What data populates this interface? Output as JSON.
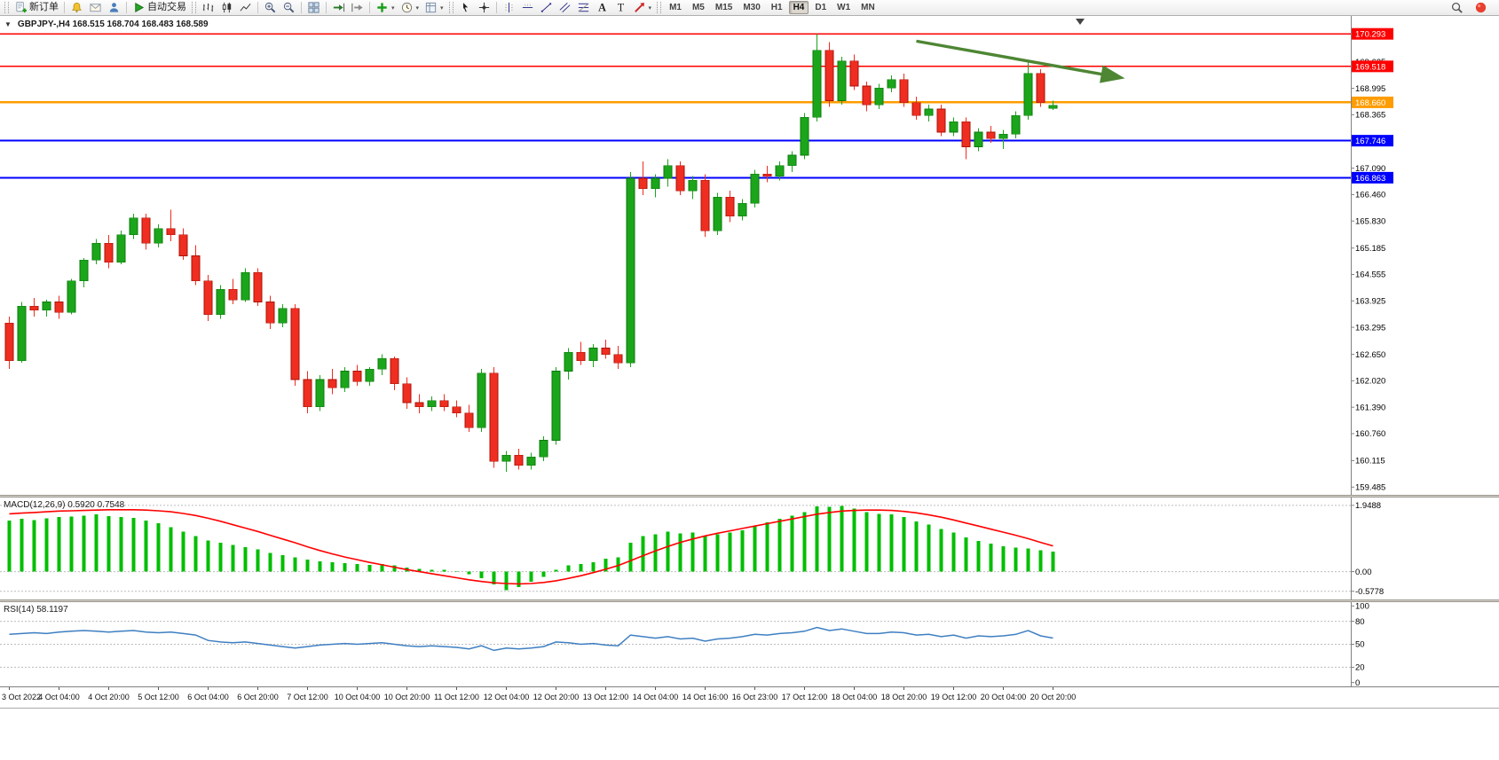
{
  "toolbar": {
    "groups": [
      {
        "grip": true,
        "items": [
          {
            "name": "new-order",
            "icon": "doc-plus",
            "label": "新订单"
          }
        ]
      },
      {
        "items": [
          {
            "name": "alerts",
            "icon": "bell"
          },
          {
            "name": "mailbox",
            "icon": "mail"
          },
          {
            "name": "community",
            "icon": "person"
          }
        ]
      },
      {
        "items": [
          {
            "name": "autotrade",
            "icon": "play",
            "label": "自动交易"
          }
        ]
      },
      {
        "grip": true,
        "items": [
          {
            "name": "chart-bars",
            "icon": "bars"
          },
          {
            "name": "chart-candles",
            "icon": "candles"
          },
          {
            "name": "chart-line",
            "icon": "linechart"
          }
        ]
      },
      {
        "items": [
          {
            "name": "zoom-in",
            "icon": "zoom-in"
          },
          {
            "name": "zoom-out",
            "icon": "zoom-out"
          }
        ]
      },
      {
        "items": [
          {
            "name": "tile-windows",
            "icon": "tile"
          }
        ]
      },
      {
        "items": [
          {
            "name": "auto-scroll",
            "icon": "autoscroll"
          },
          {
            "name": "chart-shift",
            "icon": "shift"
          }
        ]
      },
      {
        "items": [
          {
            "name": "indicators",
            "icon": "ind-plus",
            "caret": true
          },
          {
            "name": "periods",
            "icon": "clock",
            "caret": true
          },
          {
            "name": "templates",
            "icon": "template",
            "caret": true
          }
        ]
      },
      {
        "grip": true,
        "items": [
          {
            "name": "cursor",
            "icon": "cursor"
          },
          {
            "name": "crosshair",
            "icon": "crosshair"
          }
        ]
      },
      {
        "items": [
          {
            "name": "vertical-line",
            "icon": "vline"
          },
          {
            "name": "horizontal-line",
            "icon": "hline"
          },
          {
            "name": "trendline",
            "icon": "trendline"
          },
          {
            "name": "channel",
            "icon": "channel"
          },
          {
            "name": "fibonacci",
            "icon": "fibo"
          },
          {
            "name": "text",
            "icon": "text-a"
          },
          {
            "name": "label",
            "icon": "text-t"
          },
          {
            "name": "arrows",
            "icon": "arrow-obj",
            "caret": true
          }
        ]
      },
      {
        "grip": true,
        "timeframes": true
      }
    ],
    "timeframes": [
      {
        "label": "M1"
      },
      {
        "label": "M5"
      },
      {
        "label": "M15"
      },
      {
        "label": "M30"
      },
      {
        "label": "H1"
      },
      {
        "label": "H4",
        "active": true
      },
      {
        "label": "D1"
      },
      {
        "label": "W1"
      },
      {
        "label": "MN"
      }
    ],
    "right": [
      {
        "name": "search",
        "icon": "search"
      },
      {
        "name": "notifications",
        "icon": "red-dot"
      }
    ]
  },
  "window": {
    "title": "GBPJPY-,H4  168.515 168.704 168.483 168.589"
  },
  "chart_data": {
    "type": "candlestick",
    "symbol": "GBPJPY-",
    "timeframe": "H4",
    "current_bar": {
      "open": 168.515,
      "high": 168.704,
      "low": 168.483,
      "close": 168.589
    },
    "up_color": "#1BA51B",
    "down_color": "#EF2D21",
    "price_axis": {
      "min": 159.3,
      "max": 170.72,
      "labels": [
        "169.625",
        "168.995",
        "168.365",
        "167.735",
        "167.090",
        "166.460",
        "165.830",
        "165.185",
        "164.555",
        "163.925",
        "163.295",
        "162.650",
        "162.020",
        "161.390",
        "160.760",
        "160.115",
        "159.485"
      ]
    },
    "hlines": [
      {
        "price": 170.293,
        "color": "#FF0000",
        "width": 1.2
      },
      {
        "price": 169.518,
        "color": "#FF0000",
        "width": 1.8
      },
      {
        "price": 168.66,
        "color": "#FF9C00",
        "width": 2.6
      },
      {
        "price": 167.746,
        "color": "#0000FF",
        "width": 1.8
      },
      {
        "price": 166.863,
        "color": "#0000FF",
        "width": 1.8
      }
    ],
    "trend_arrow": {
      "from_index": 73,
      "from_price": 170.12,
      "to_index": 90,
      "to_price": 169.22,
      "color": "#4E8633"
    },
    "label_every_n_candles": 4,
    "time_labels": [
      "3 Oct 2022",
      "4 Oct 04:00",
      "4 Oct 20:00",
      "5 Oct 12:00",
      "6 Oct 04:00",
      "6 Oct 20:00",
      "7 Oct 12:00",
      "10 Oct 04:00",
      "10 Oct 20:00",
      "11 Oct 12:00",
      "12 Oct 04:00",
      "12 Oct 20:00",
      "13 Oct 12:00",
      "14 Oct 04:00",
      "14 Oct 16:00",
      "16 Oct 23:00",
      "17 Oct 12:00",
      "18 Oct 04:00",
      "18 Oct 20:00",
      "19 Oct 12:00",
      "20 Oct 04:00",
      "20 Oct 20:00"
    ],
    "candles": [
      [
        163.4,
        163.55,
        162.3,
        162.5
      ],
      [
        162.5,
        163.9,
        162.45,
        163.8
      ],
      [
        163.8,
        164.0,
        163.55,
        163.7
      ],
      [
        163.7,
        163.95,
        163.55,
        163.9
      ],
      [
        163.9,
        164.05,
        163.5,
        163.65
      ],
      [
        163.65,
        164.45,
        163.6,
        164.4
      ],
      [
        164.4,
        164.95,
        164.25,
        164.9
      ],
      [
        164.9,
        165.4,
        164.8,
        165.3
      ],
      [
        165.3,
        165.5,
        164.7,
        164.85
      ],
      [
        164.85,
        165.6,
        164.8,
        165.5
      ],
      [
        165.5,
        166.0,
        165.4,
        165.9
      ],
      [
        165.9,
        166.0,
        165.15,
        165.3
      ],
      [
        165.3,
        165.75,
        165.2,
        165.65
      ],
      [
        165.65,
        166.1,
        165.35,
        165.5
      ],
      [
        165.5,
        165.65,
        164.9,
        165.0
      ],
      [
        165.0,
        165.25,
        164.3,
        164.4
      ],
      [
        164.4,
        164.55,
        163.45,
        163.6
      ],
      [
        163.6,
        164.3,
        163.5,
        164.2
      ],
      [
        164.2,
        164.45,
        163.85,
        163.95
      ],
      [
        163.95,
        164.7,
        163.9,
        164.6
      ],
      [
        164.6,
        164.7,
        163.8,
        163.9
      ],
      [
        163.9,
        164.05,
        163.25,
        163.4
      ],
      [
        163.4,
        163.85,
        163.3,
        163.75
      ],
      [
        163.75,
        163.85,
        161.9,
        162.05
      ],
      [
        162.05,
        162.25,
        161.25,
        161.4
      ],
      [
        161.4,
        162.15,
        161.3,
        162.05
      ],
      [
        162.05,
        162.3,
        161.7,
        161.85
      ],
      [
        161.85,
        162.35,
        161.75,
        162.25
      ],
      [
        162.25,
        162.4,
        161.9,
        162.0
      ],
      [
        162.0,
        162.35,
        161.9,
        162.3
      ],
      [
        162.3,
        162.65,
        162.15,
        162.55
      ],
      [
        162.55,
        162.6,
        161.8,
        161.95
      ],
      [
        161.95,
        162.1,
        161.35,
        161.5
      ],
      [
        161.5,
        161.7,
        161.25,
        161.4
      ],
      [
        161.4,
        161.65,
        161.3,
        161.55
      ],
      [
        161.55,
        161.7,
        161.3,
        161.4
      ],
      [
        161.4,
        161.55,
        161.15,
        161.25
      ],
      [
        161.25,
        161.45,
        160.8,
        160.9
      ],
      [
        160.9,
        162.3,
        160.8,
        162.2
      ],
      [
        162.2,
        162.35,
        159.95,
        160.1
      ],
      [
        160.1,
        160.35,
        159.85,
        160.25
      ],
      [
        160.25,
        160.4,
        159.9,
        160.0
      ],
      [
        160.0,
        160.3,
        159.9,
        160.2
      ],
      [
        160.2,
        160.7,
        160.1,
        160.6
      ],
      [
        160.6,
        162.35,
        160.5,
        162.25
      ],
      [
        162.25,
        162.8,
        162.05,
        162.7
      ],
      [
        162.7,
        162.95,
        162.4,
        162.5
      ],
      [
        162.5,
        162.9,
        162.35,
        162.8
      ],
      [
        162.8,
        163.0,
        162.55,
        162.65
      ],
      [
        162.65,
        162.85,
        162.3,
        162.45
      ],
      [
        162.45,
        167.0,
        162.35,
        166.85
      ],
      [
        166.85,
        167.25,
        166.45,
        166.6
      ],
      [
        166.6,
        166.95,
        166.4,
        166.85
      ],
      [
        166.85,
        167.3,
        166.65,
        167.15
      ],
      [
        167.15,
        167.25,
        166.45,
        166.55
      ],
      [
        166.55,
        166.9,
        166.35,
        166.8
      ],
      [
        166.8,
        166.95,
        165.45,
        165.6
      ],
      [
        165.6,
        166.5,
        165.5,
        166.4
      ],
      [
        166.4,
        166.55,
        165.8,
        165.95
      ],
      [
        165.95,
        166.35,
        165.85,
        166.25
      ],
      [
        166.25,
        167.05,
        166.15,
        166.95
      ],
      [
        166.95,
        167.15,
        166.75,
        166.9
      ],
      [
        166.9,
        167.25,
        166.8,
        167.15
      ],
      [
        167.15,
        167.5,
        167.0,
        167.4
      ],
      [
        167.4,
        168.4,
        167.3,
        168.3
      ],
      [
        168.3,
        170.29,
        168.2,
        169.9
      ],
      [
        169.9,
        170.1,
        168.55,
        168.7
      ],
      [
        168.7,
        169.75,
        168.6,
        169.65
      ],
      [
        169.65,
        169.8,
        168.95,
        169.05
      ],
      [
        169.05,
        169.15,
        168.45,
        168.6
      ],
      [
        168.6,
        169.1,
        168.5,
        169.0
      ],
      [
        169.0,
        169.3,
        168.9,
        169.2
      ],
      [
        169.2,
        169.35,
        168.55,
        168.65
      ],
      [
        168.65,
        168.8,
        168.25,
        168.35
      ],
      [
        168.35,
        168.6,
        168.2,
        168.5
      ],
      [
        168.5,
        168.6,
        167.85,
        167.95
      ],
      [
        167.95,
        168.3,
        167.85,
        168.2
      ],
      [
        168.2,
        168.3,
        167.3,
        167.6
      ],
      [
        167.6,
        168.05,
        167.5,
        167.95
      ],
      [
        167.95,
        168.1,
        167.7,
        167.8
      ],
      [
        167.8,
        168.0,
        167.55,
        167.9
      ],
      [
        167.9,
        168.45,
        167.8,
        168.35
      ],
      [
        168.35,
        169.63,
        168.25,
        169.35
      ],
      [
        169.35,
        169.45,
        168.55,
        168.65
      ],
      [
        168.515,
        168.704,
        168.483,
        168.589
      ]
    ],
    "indicators": [
      {
        "name": "MACD",
        "label": "MACD(12,26,9) 0.5920 0.7548",
        "histogram_color": "#00BE00",
        "signal_color": "#FF0000",
        "scale_labels": [
          "1.9488",
          "0.00",
          "-0.5778"
        ],
        "histogram": [
          1.5,
          1.55,
          1.52,
          1.57,
          1.6,
          1.62,
          1.65,
          1.68,
          1.63,
          1.6,
          1.58,
          1.5,
          1.42,
          1.3,
          1.18,
          1.05,
          0.92,
          0.85,
          0.78,
          0.72,
          0.65,
          0.55,
          0.48,
          0.42,
          0.35,
          0.3,
          0.27,
          0.25,
          0.22,
          0.2,
          0.22,
          0.18,
          0.12,
          0.08,
          0.06,
          0.05,
          0.02,
          -0.08,
          -0.2,
          -0.38,
          -0.55,
          -0.45,
          -0.3,
          -0.15,
          0.05,
          0.18,
          0.22,
          0.28,
          0.38,
          0.42,
          0.85,
          1.05,
          1.1,
          1.18,
          1.12,
          1.15,
          1.05,
          1.1,
          1.15,
          1.22,
          1.35,
          1.45,
          1.55,
          1.65,
          1.75,
          1.92,
          1.9,
          1.93,
          1.85,
          1.75,
          1.7,
          1.68,
          1.6,
          1.48,
          1.38,
          1.25,
          1.15,
          1.0,
          0.9,
          0.82,
          0.75,
          0.7,
          0.68,
          0.63,
          0.592
        ],
        "signal": [
          1.7,
          1.72,
          1.74,
          1.76,
          1.78,
          1.79,
          1.8,
          1.81,
          1.82,
          1.82,
          1.82,
          1.81,
          1.79,
          1.76,
          1.71,
          1.65,
          1.57,
          1.48,
          1.38,
          1.28,
          1.18,
          1.07,
          0.96,
          0.85,
          0.73,
          0.62,
          0.52,
          0.43,
          0.35,
          0.27,
          0.2,
          0.13,
          0.06,
          0.0,
          -0.06,
          -0.12,
          -0.18,
          -0.24,
          -0.29,
          -0.33,
          -0.35,
          -0.36,
          -0.35,
          -0.32,
          -0.27,
          -0.2,
          -0.12,
          -0.03,
          0.07,
          0.18,
          0.32,
          0.47,
          0.61,
          0.74,
          0.86,
          0.96,
          1.05,
          1.13,
          1.2,
          1.27,
          1.34,
          1.41,
          1.48,
          1.55,
          1.62,
          1.69,
          1.74,
          1.78,
          1.8,
          1.81,
          1.81,
          1.8,
          1.77,
          1.73,
          1.67,
          1.6,
          1.52,
          1.43,
          1.34,
          1.25,
          1.16,
          1.07,
          0.97,
          0.86,
          0.7548
        ]
      },
      {
        "name": "RSI",
        "label": "RSI(14) 58.1197",
        "line_color": "#3E7FC1",
        "scale_labels": [
          "100",
          "80",
          "50",
          "20",
          "0"
        ],
        "levels": [
          80,
          50,
          20
        ],
        "line": [
          63,
          64,
          65,
          64,
          66,
          67,
          68,
          67,
          66,
          67,
          68,
          66,
          65,
          66,
          64,
          62,
          55,
          53,
          52,
          53,
          51,
          49,
          47,
          45,
          47,
          49,
          50,
          51,
          50,
          51,
          52,
          50,
          48,
          47,
          48,
          47,
          46,
          44,
          48,
          42,
          45,
          44,
          45,
          47,
          53,
          52,
          50,
          51,
          49,
          48,
          62,
          60,
          58,
          60,
          57,
          58,
          54,
          57,
          58,
          60,
          63,
          62,
          64,
          65,
          67,
          72,
          68,
          70,
          67,
          64,
          64,
          66,
          65,
          62,
          63,
          60,
          62,
          58,
          61,
          60,
          61,
          63,
          68,
          61,
          58.1
        ]
      }
    ]
  }
}
